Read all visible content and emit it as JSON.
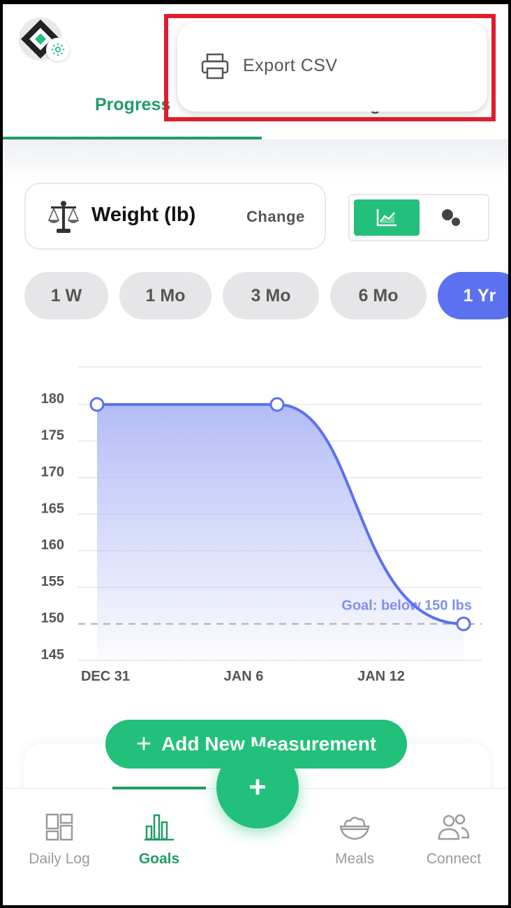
{
  "tabs": {
    "progress_label": "Progress",
    "other_label": "g"
  },
  "menu": {
    "export_label": "Export CSV"
  },
  "metric": {
    "label": "Weight (lb)",
    "change_label": "Change",
    "icon": "scale-icon"
  },
  "view_toggle": {
    "selected": "line-chart-icon",
    "other": "bubble-chart-icon"
  },
  "ranges": [
    {
      "label": "1 W",
      "active": false
    },
    {
      "label": "1 Mo",
      "active": false
    },
    {
      "label": "3 Mo",
      "active": false
    },
    {
      "label": "6 Mo",
      "active": false
    },
    {
      "label": "1 Yr",
      "active": true
    }
  ],
  "chart_data": {
    "type": "area",
    "x": [
      "DEC 31",
      "JAN 9",
      "JAN 15"
    ],
    "values": [
      180,
      180,
      150
    ],
    "x_ticks": [
      "DEC 31",
      "JAN 6",
      "JAN 12"
    ],
    "y_ticks": [
      180,
      175,
      170,
      165,
      160,
      155,
      150,
      145
    ],
    "ylim": [
      145,
      180
    ],
    "goal": {
      "value": 150,
      "label": "Goal: below 150 lbs"
    },
    "grid": true,
    "colors": {
      "line": "#5b71f0",
      "fill_top": "#b3bdf6",
      "goal": "#7f8ff2"
    }
  },
  "actions": {
    "add_measurement_label": "Add New Measurement",
    "fab_label": "+"
  },
  "bottom_nav": [
    {
      "label": "Daily Log",
      "icon": "daily-log-icon",
      "active": false
    },
    {
      "label": "Goals",
      "icon": "goals-icon",
      "active": true
    },
    {
      "label": "Meals",
      "icon": "meals-icon",
      "active": false
    },
    {
      "label": "Connect",
      "icon": "connect-icon",
      "active": false
    }
  ],
  "colors": {
    "brand_green": "#22c07a",
    "accent_blue": "#5b71f0",
    "highlight_red": "#e21b2c"
  }
}
